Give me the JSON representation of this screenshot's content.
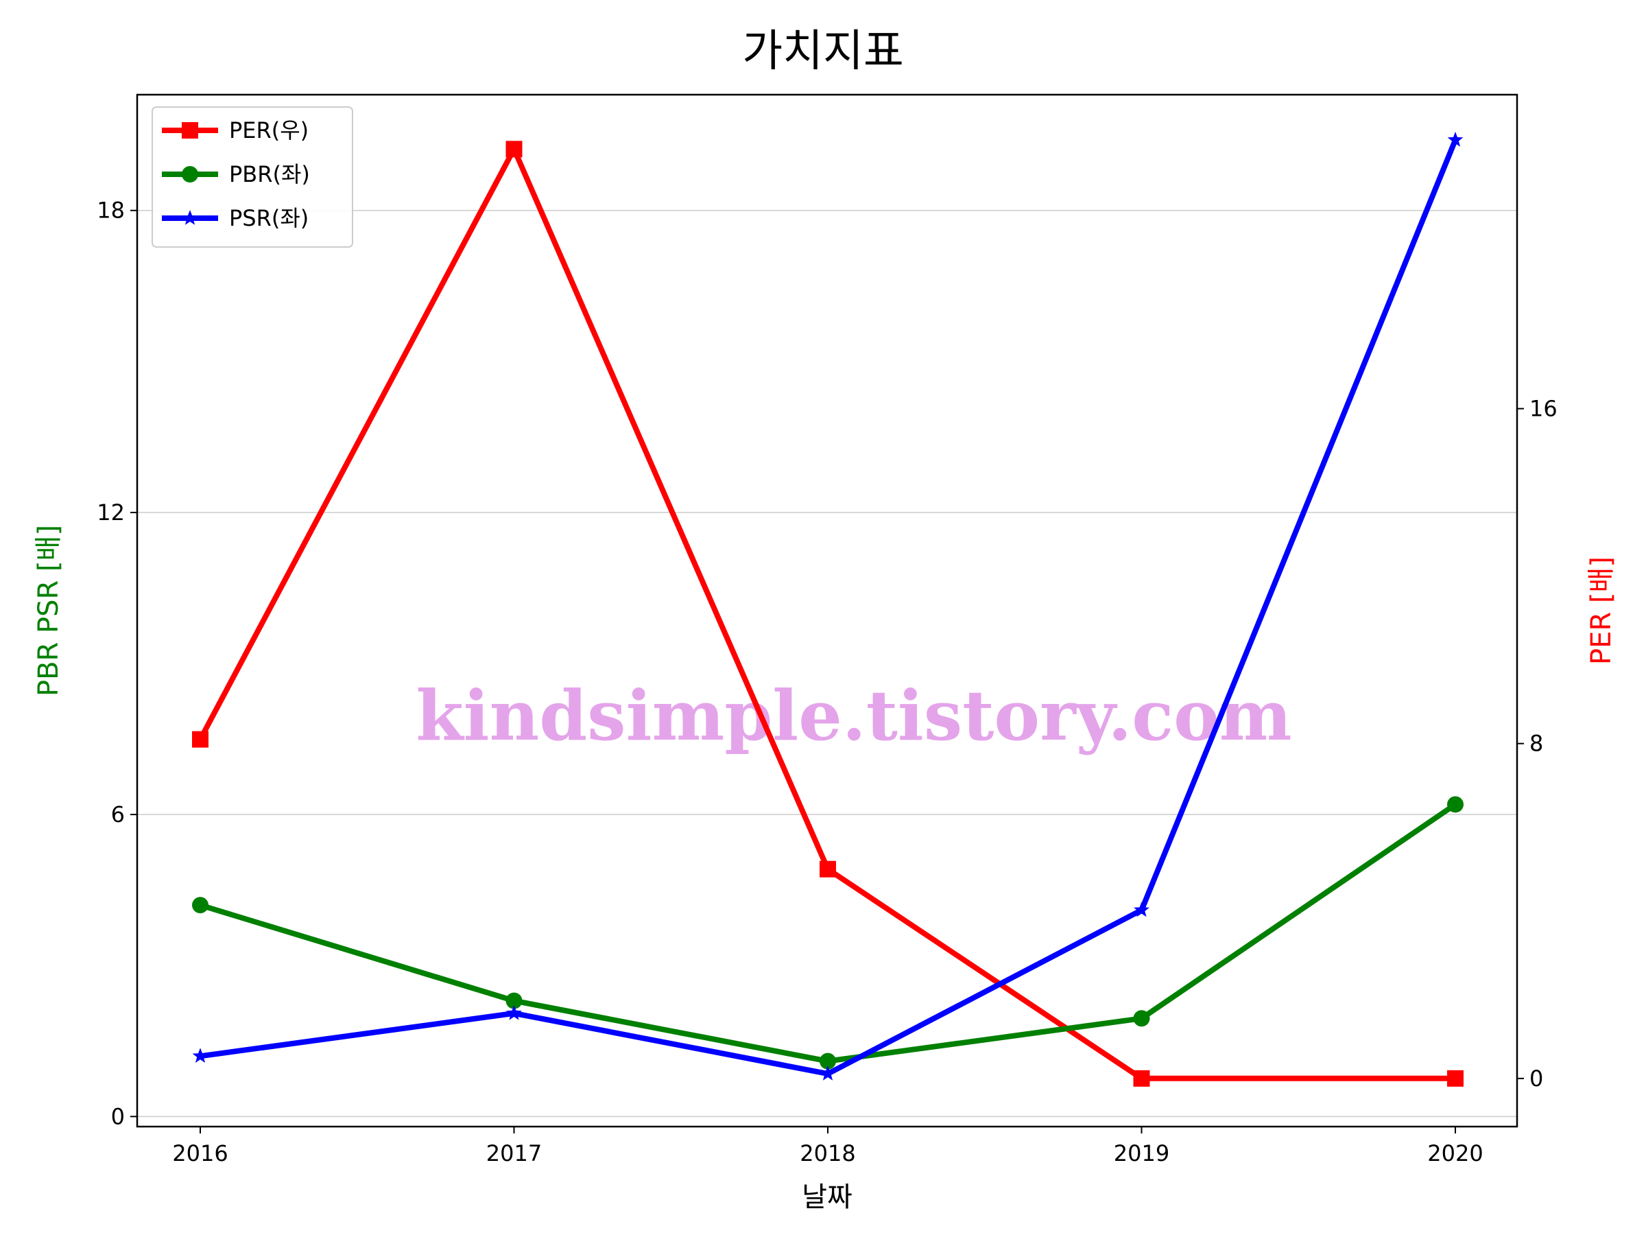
{
  "chart_data": {
    "type": "line",
    "title": "가치지표",
    "xlabel": "날짜",
    "ylabel_left": "PBR PSR [배]",
    "ylabel_right": "PER [배]",
    "categories": [
      "2016",
      "2017",
      "2018",
      "2019",
      "2020"
    ],
    "left_axis": {
      "ylim": [
        -0.2,
        20.3
      ],
      "ticks": [
        0,
        6,
        12,
        18
      ],
      "label_color": "#008000",
      "grid": true
    },
    "right_axis": {
      "ylim": [
        -1.15,
        23.5
      ],
      "ticks": [
        0,
        8,
        16
      ],
      "label_color": "#ff0000",
      "grid": false
    },
    "series": [
      {
        "name": "PER(우)",
        "axis": "right",
        "color": "#ff0000",
        "marker": "square",
        "values": [
          8.1,
          22.2,
          5.0,
          0.0,
          0.0
        ]
      },
      {
        "name": "PBR(좌)",
        "axis": "left",
        "color": "#008000",
        "marker": "circle",
        "values": [
          4.2,
          2.3,
          1.1,
          1.95,
          6.2
        ]
      },
      {
        "name": "PSR(좌)",
        "axis": "left",
        "color": "#0000ff",
        "marker": "star",
        "values": [
          1.2,
          2.05,
          0.85,
          4.1,
          19.4
        ]
      }
    ],
    "legend_position": "top-left",
    "watermark": "kindsimple.tistory.com"
  }
}
